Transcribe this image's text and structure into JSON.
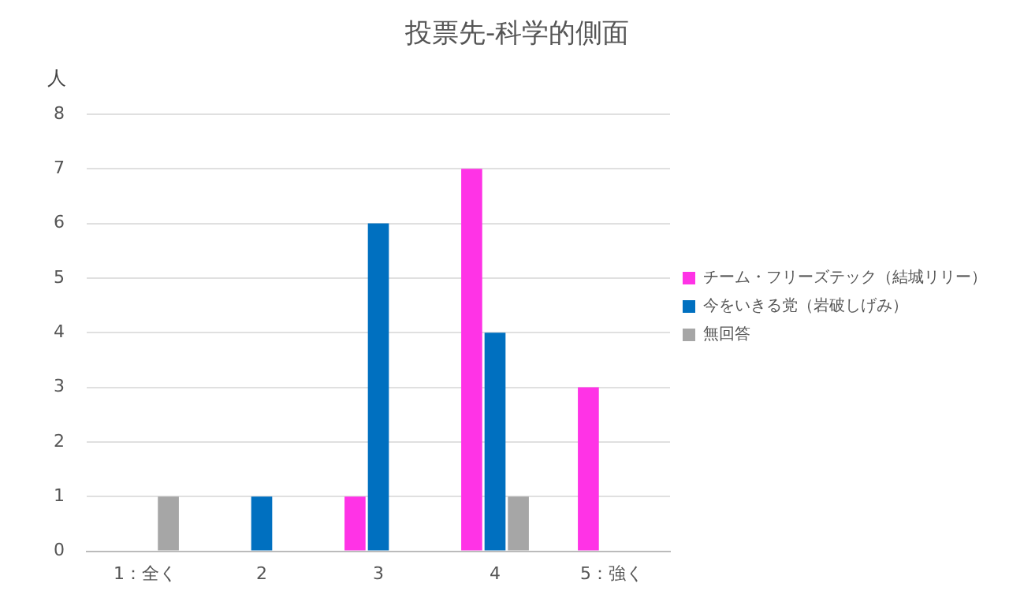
{
  "chart_data": {
    "type": "bar",
    "title": "投票先-科学的側面",
    "ylabel": "人",
    "categories": [
      "1：全く",
      "2",
      "3",
      "4",
      "5：強く"
    ],
    "series": [
      {
        "name": "チーム・フリーズテック（結城リリー）",
        "color": "#ff33e6",
        "values": [
          0,
          0,
          1,
          7,
          3
        ]
      },
      {
        "name": "今をいきる党（岩破しげみ）",
        "color": "#0070c0",
        "values": [
          0,
          1,
          6,
          4,
          0
        ]
      },
      {
        "name": "無回答",
        "color": "#a6a6a6",
        "values": [
          1,
          0,
          0,
          1,
          0
        ]
      }
    ],
    "ylim": [
      0,
      8
    ],
    "yticks": [
      0,
      1,
      2,
      3,
      4,
      5,
      6,
      7,
      8
    ],
    "grid": "y",
    "legend": "right"
  }
}
